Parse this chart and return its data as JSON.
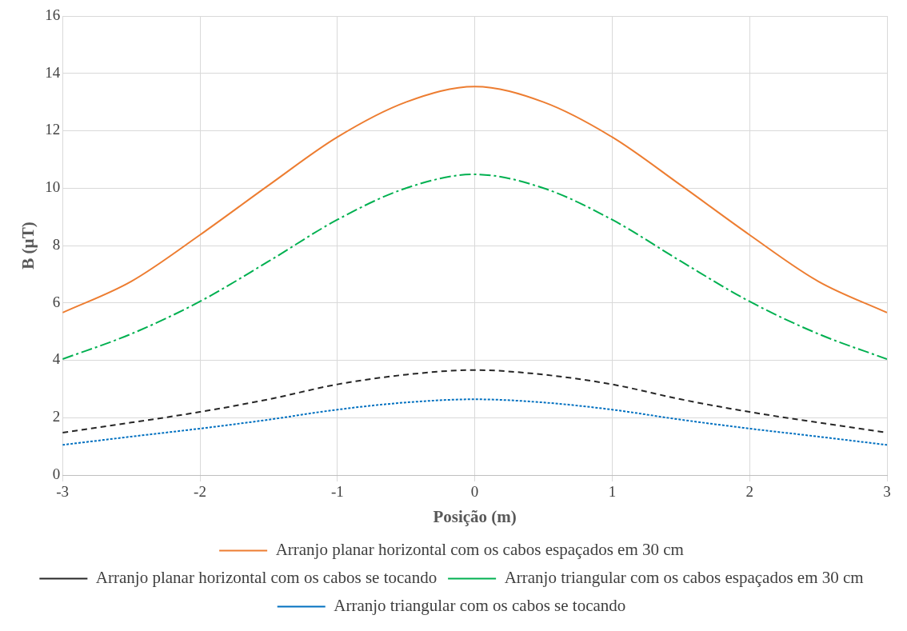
{
  "chart_data": {
    "type": "line",
    "xlabel": "Posição (m)",
    "ylabel": "B (µT)",
    "x": [
      -3,
      -2.5,
      -2,
      -1.5,
      -1,
      -0.5,
      0,
      0.5,
      1,
      1.5,
      2,
      2.5,
      3
    ],
    "series": [
      {
        "name": "Arranjo planar horizontal com os cabos espaçados em 30 cm",
        "color": "#ed7d31",
        "line_style": "solid",
        "values": [
          5.66,
          6.75,
          8.37,
          10.1,
          11.78,
          13.0,
          13.54,
          13.0,
          11.78,
          10.1,
          8.37,
          6.75,
          5.66
        ]
      },
      {
        "name": "Arranjo planar horizontal com os cabos se tocando",
        "color": "#262626",
        "line_style": "dashed",
        "values": [
          1.48,
          1.83,
          2.2,
          2.64,
          3.16,
          3.5,
          3.66,
          3.5,
          3.16,
          2.64,
          2.2,
          1.83,
          1.48
        ]
      },
      {
        "name": "Arranjo triangular com os cabos espaçados em 30 cm",
        "color": "#00b050",
        "line_style": "dashdot",
        "values": [
          4.04,
          4.92,
          6.05,
          7.45,
          8.9,
          10.0,
          10.48,
          10.0,
          8.9,
          7.45,
          6.05,
          4.92,
          4.04
        ]
      },
      {
        "name": "Arranjo triangular com os cabos se tocando",
        "color": "#0070c0",
        "line_style": "dotted",
        "values": [
          1.05,
          1.34,
          1.62,
          1.93,
          2.28,
          2.53,
          2.64,
          2.53,
          2.28,
          1.93,
          1.62,
          1.34,
          1.05
        ]
      }
    ],
    "xlim": [
      -3,
      3
    ],
    "xticks": [
      -3,
      -2,
      -1,
      0,
      1,
      2,
      3
    ],
    "ylim": [
      0,
      16
    ],
    "yticks": [
      0,
      2,
      4,
      6,
      8,
      10,
      12,
      14,
      16
    ],
    "grid": true,
    "legend": "bottom",
    "marker": "none"
  }
}
